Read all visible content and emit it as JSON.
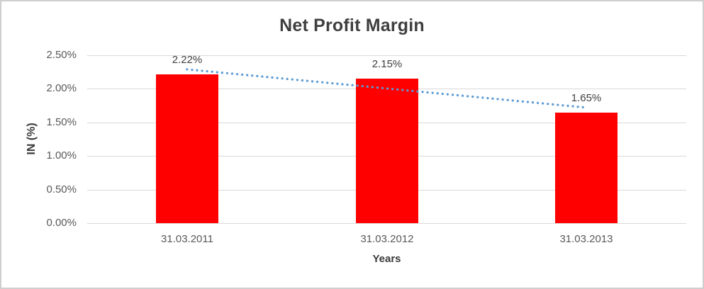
{
  "window": {
    "background": "#ffffff",
    "border_color": "#cfcfcf"
  },
  "chart_data": {
    "type": "bar",
    "title": "Net Profit Margin",
    "categories": [
      "31.03.2011",
      "31.03.2012",
      "31.03.2013"
    ],
    "values": [
      2.22,
      2.15,
      1.65
    ],
    "data_labels": [
      "2.22%",
      "2.15%",
      "1.65%"
    ],
    "xlabel": "Years",
    "ylabel": "IN (%)",
    "ylim": [
      0,
      2.5
    ],
    "yticks": [
      {
        "value": 0.0,
        "label": "0.00%"
      },
      {
        "value": 0.5,
        "label": "0.50%"
      },
      {
        "value": 1.0,
        "label": "1.00%"
      },
      {
        "value": 1.5,
        "label": "1.50%"
      },
      {
        "value": 2.0,
        "label": "2.00%"
      },
      {
        "value": 2.5,
        "label": "2.50%"
      }
    ],
    "grid": true,
    "legend": "none",
    "trendline": {
      "type": "linear",
      "style": "dotted",
      "fit_start_value": 2.29,
      "fit_end_value": 1.72
    },
    "colors": {
      "bar": "#ff0000",
      "trendline": "#5b9bd5",
      "gridline": "#d9d9d9",
      "title_text": "#3f3f3f",
      "tick_text": "#595959",
      "axis_title_text": "#3a3a3a",
      "data_label_text": "#404040"
    }
  }
}
